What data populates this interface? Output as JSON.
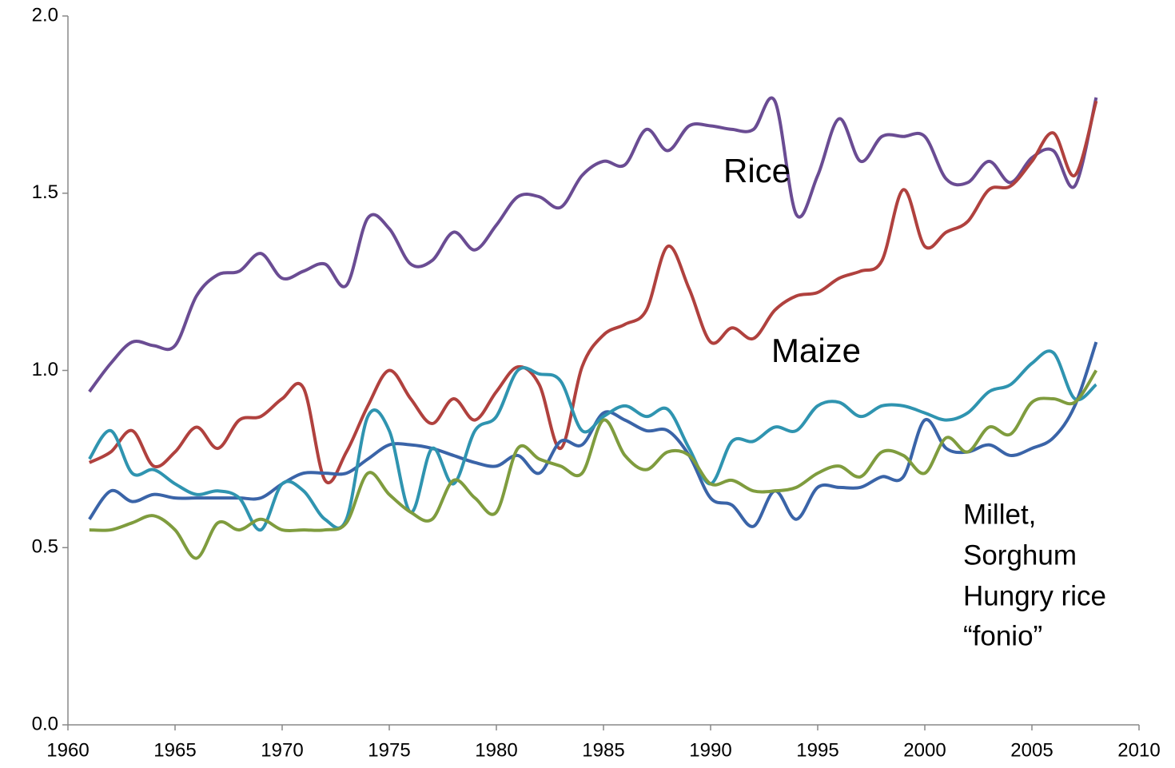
{
  "chart_data": {
    "type": "line",
    "x": [
      1961,
      1962,
      1963,
      1964,
      1965,
      1966,
      1967,
      1968,
      1969,
      1970,
      1971,
      1972,
      1973,
      1974,
      1975,
      1976,
      1977,
      1978,
      1979,
      1980,
      1981,
      1982,
      1983,
      1984,
      1985,
      1986,
      1987,
      1988,
      1989,
      1990,
      1991,
      1992,
      1993,
      1994,
      1995,
      1996,
      1997,
      1998,
      1999,
      2000,
      2001,
      2002,
      2003,
      2004,
      2005,
      2006,
      2007,
      2008
    ],
    "series": [
      {
        "color": "#6a4c93",
        "values": [
          0.94,
          1.02,
          1.08,
          1.07,
          1.07,
          1.21,
          1.27,
          1.28,
          1.33,
          1.26,
          1.28,
          1.3,
          1.24,
          1.43,
          1.4,
          1.3,
          1.31,
          1.39,
          1.34,
          1.41,
          1.49,
          1.49,
          1.46,
          1.55,
          1.59,
          1.58,
          1.68,
          1.62,
          1.69,
          1.69,
          1.68,
          1.68,
          1.76,
          1.44,
          1.55,
          1.71,
          1.59,
          1.66,
          1.66,
          1.66,
          1.54,
          1.53,
          1.59,
          1.53,
          1.6,
          1.62,
          1.52,
          1.77
        ]
      },
      {
        "color": "#b0413e",
        "values": [
          0.74,
          0.77,
          0.83,
          0.73,
          0.77,
          0.84,
          0.78,
          0.86,
          0.87,
          0.92,
          0.95,
          0.69,
          0.77,
          0.9,
          1.0,
          0.92,
          0.85,
          0.92,
          0.86,
          0.94,
          1.01,
          0.96,
          0.78,
          1.01,
          1.1,
          1.13,
          1.17,
          1.35,
          1.23,
          1.08,
          1.12,
          1.09,
          1.17,
          1.21,
          1.22,
          1.26,
          1.28,
          1.31,
          1.51,
          1.35,
          1.39,
          1.42,
          1.51,
          1.52,
          1.59,
          1.67,
          1.55,
          1.76
        ]
      },
      {
        "color": "#3a64a8",
        "values": [
          0.58,
          0.66,
          0.63,
          0.65,
          0.64,
          0.64,
          0.64,
          0.64,
          0.64,
          0.68,
          0.71,
          0.71,
          0.71,
          0.75,
          0.79,
          0.79,
          0.78,
          0.76,
          0.74,
          0.73,
          0.76,
          0.71,
          0.8,
          0.79,
          0.88,
          0.86,
          0.83,
          0.83,
          0.76,
          0.64,
          0.62,
          0.56,
          0.66,
          0.58,
          0.67,
          0.67,
          0.67,
          0.7,
          0.7,
          0.86,
          0.78,
          0.77,
          0.79,
          0.76,
          0.78,
          0.81,
          0.9,
          1.08
        ]
      },
      {
        "color": "#2f94b0",
        "values": [
          0.75,
          0.83,
          0.71,
          0.72,
          0.68,
          0.65,
          0.66,
          0.64,
          0.55,
          0.68,
          0.66,
          0.58,
          0.58,
          0.87,
          0.83,
          0.6,
          0.78,
          0.68,
          0.83,
          0.87,
          1.0,
          0.99,
          0.97,
          0.83,
          0.87,
          0.9,
          0.87,
          0.89,
          0.78,
          0.68,
          0.8,
          0.8,
          0.84,
          0.83,
          0.9,
          0.91,
          0.87,
          0.9,
          0.9,
          0.88,
          0.86,
          0.88,
          0.94,
          0.96,
          1.02,
          1.05,
          0.92,
          0.96
        ]
      },
      {
        "color": "#7f9c3e",
        "values": [
          0.55,
          0.55,
          0.57,
          0.59,
          0.55,
          0.47,
          0.57,
          0.55,
          0.58,
          0.55,
          0.55,
          0.55,
          0.57,
          0.71,
          0.65,
          0.6,
          0.58,
          0.69,
          0.64,
          0.6,
          0.78,
          0.75,
          0.73,
          0.71,
          0.86,
          0.76,
          0.72,
          0.77,
          0.76,
          0.68,
          0.69,
          0.66,
          0.66,
          0.67,
          0.71,
          0.73,
          0.7,
          0.77,
          0.76,
          0.71,
          0.81,
          0.77,
          0.84,
          0.82,
          0.91,
          0.92,
          0.91,
          1.0
        ]
      }
    ],
    "xlim": [
      1960,
      2010
    ],
    "xticks": [
      1960,
      1965,
      1970,
      1975,
      1980,
      1985,
      1990,
      1995,
      2000,
      2005,
      2010
    ],
    "ylim": [
      0,
      2
    ],
    "yticks": [
      {
        "value": 0,
        "label": "0.0"
      },
      {
        "value": 0.5,
        "label": "0.5"
      },
      {
        "value": 1,
        "label": "1.0"
      },
      {
        "value": 1.5,
        "label": "1.5"
      },
      {
        "value": 2,
        "label": "2.0"
      }
    ],
    "grid": false,
    "annotations": [
      "Rice",
      "Maize",
      "Millet,",
      "Sorghum",
      "Hungry rice",
      "“fonio”"
    ]
  }
}
